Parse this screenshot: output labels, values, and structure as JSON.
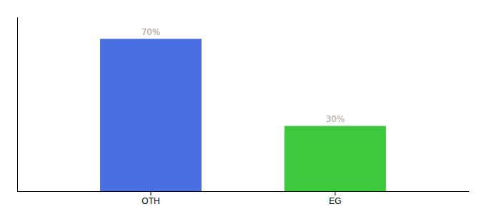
{
  "chart_data": {
    "type": "bar",
    "categories": [
      "OTH",
      "EG"
    ],
    "values": [
      70,
      30
    ],
    "value_labels": [
      "70%",
      "30%"
    ],
    "colors": [
      "#4a6fe3",
      "#3dc93d"
    ],
    "ylim": [
      0,
      80
    ],
    "data_labels": true,
    "tick_labels": "x",
    "grid": false
  }
}
